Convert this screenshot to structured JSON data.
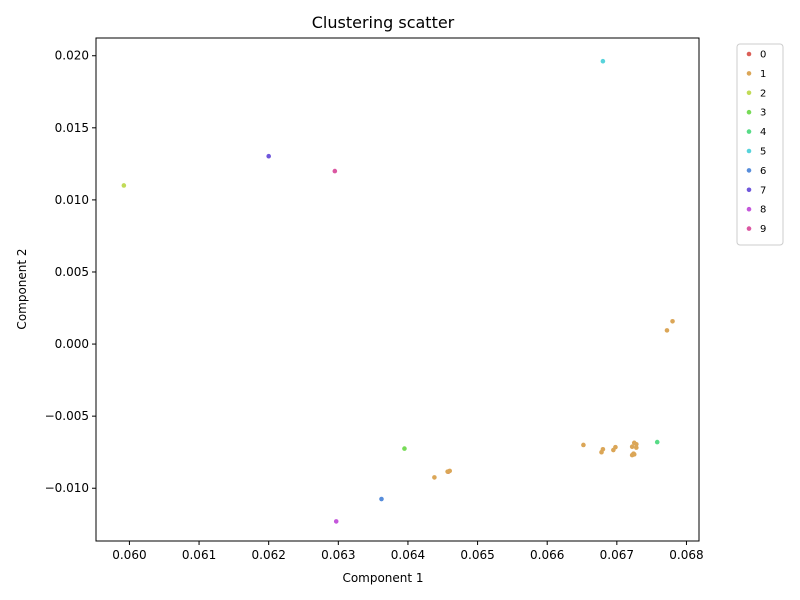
{
  "chart_data": {
    "type": "scatter",
    "title": "Clustering scatter",
    "xlabel": "Component 1",
    "ylabel": "Component 2",
    "xlim": [
      0.05952,
      0.06818
    ],
    "ylim": [
      -0.01366,
      0.02123
    ],
    "xticks": [
      {
        "value": 0.06,
        "label": "0.060"
      },
      {
        "value": 0.061,
        "label": "0.061"
      },
      {
        "value": 0.062,
        "label": "0.062"
      },
      {
        "value": 0.063,
        "label": "0.063"
      },
      {
        "value": 0.064,
        "label": "0.064"
      },
      {
        "value": 0.065,
        "label": "0.065"
      },
      {
        "value": 0.066,
        "label": "0.066"
      },
      {
        "value": 0.067,
        "label": "0.067"
      },
      {
        "value": 0.068,
        "label": "0.068"
      }
    ],
    "yticks": [
      {
        "value": -0.01,
        "label": "−0.010"
      },
      {
        "value": -0.005,
        "label": "−0.005"
      },
      {
        "value": 0.0,
        "label": "0.000"
      },
      {
        "value": 0.005,
        "label": "0.005"
      },
      {
        "value": 0.01,
        "label": "0.010"
      },
      {
        "value": 0.015,
        "label": "0.015"
      },
      {
        "value": 0.02,
        "label": "0.020"
      }
    ],
    "grid": false,
    "legend": {
      "placement": "outside-top-right"
    },
    "series": [
      {
        "name": "0",
        "color": "#db5f57",
        "points": [
          [
            0.06458,
            -0.00885
          ]
        ]
      },
      {
        "name": "1",
        "color": "#dba657",
        "points": [
          [
            0.0678,
            0.00158
          ],
          [
            0.06772,
            0.00095
          ],
          [
            0.06652,
            -0.007
          ],
          [
            0.0668,
            -0.0073
          ],
          [
            0.06678,
            -0.0075
          ],
          [
            0.06698,
            -0.00715
          ],
          [
            0.06695,
            -0.00735
          ],
          [
            0.06725,
            -0.00685
          ],
          [
            0.06728,
            -0.00695
          ],
          [
            0.06722,
            -0.00712
          ],
          [
            0.06728,
            -0.00718
          ],
          [
            0.06724,
            -0.0076
          ],
          [
            0.06722,
            -0.0077
          ],
          [
            0.06725,
            -0.00765
          ],
          [
            0.0646,
            -0.0088
          ],
          [
            0.06457,
            -0.00885
          ],
          [
            0.06438,
            -0.00925
          ]
        ]
      },
      {
        "name": "2",
        "color": "#c1db57",
        "points": [
          [
            0.05992,
            0.011
          ]
        ]
      },
      {
        "name": "3",
        "color": "#77db57",
        "points": [
          [
            0.06395,
            -0.00725
          ]
        ]
      },
      {
        "name": "4",
        "color": "#57db86",
        "points": [
          [
            0.06758,
            -0.0068
          ]
        ]
      },
      {
        "name": "5",
        "color": "#57d3db",
        "points": [
          [
            0.0668,
            0.01962
          ]
        ]
      },
      {
        "name": "6",
        "color": "#578ddb",
        "points": [
          [
            0.06362,
            -0.01075
          ]
        ]
      },
      {
        "name": "7",
        "color": "#6f57db",
        "points": [
          [
            0.062,
            0.01303
          ]
        ]
      },
      {
        "name": "8",
        "color": "#c457db",
        "points": [
          [
            0.06297,
            -0.0123
          ]
        ]
      },
      {
        "name": "9",
        "color": "#db57a2",
        "points": [
          [
            0.06295,
            0.012
          ]
        ]
      }
    ]
  }
}
